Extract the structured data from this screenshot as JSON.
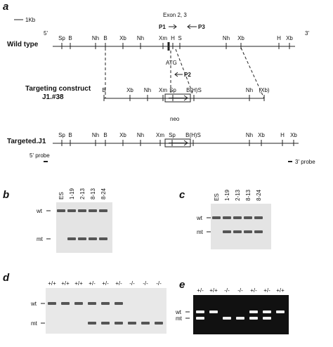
{
  "panels": {
    "a": {
      "label": "a",
      "scale": "1Kb",
      "exon": "Exon 2, 3",
      "p1": "P1",
      "p3": "P3",
      "p2": "P2",
      "atg": "ATG",
      "five": "5'",
      "three": "3'",
      "neo": "neo",
      "probe5": "5' probe",
      "probe3": "3' probe",
      "maps": [
        {
          "label": "Wild type",
          "sites": [
            "Sp",
            "B",
            "Nh",
            "B",
            "Xb",
            "Nh",
            "Xm",
            "H",
            "S",
            "Nh",
            "Xb",
            "H",
            "Xb"
          ]
        },
        {
          "label": "Targeting construct",
          "sublabel": "J1.#38",
          "sites": [
            "B",
            "Xb",
            "Nh",
            "Xm",
            "Sp",
            "B(H)S",
            "Nh",
            "(Xb)"
          ]
        },
        {
          "label": "Targeted.J1",
          "sites": [
            "Sp",
            "B",
            "Nh",
            "B",
            "Xb",
            "Nh",
            "Xm",
            "Sp",
            "B(H)S",
            "Nh",
            "Xb",
            "H",
            "Xb"
          ]
        }
      ]
    },
    "b": {
      "label": "b",
      "lanes": [
        "ES",
        "1-19",
        "2-13",
        "8-13",
        "8-24"
      ],
      "rows": [
        "wt",
        "mt"
      ]
    },
    "c": {
      "label": "c",
      "lanes": [
        "ES",
        "1-19",
        "2-13",
        "8-13",
        "8-24"
      ],
      "rows": [
        "wt",
        "mt"
      ]
    },
    "d": {
      "label": "d",
      "lanes": [
        "+/+",
        "+/+",
        "+/+",
        "+/-",
        "+/-",
        "+/-",
        "-/-",
        "-/-",
        "-/-"
      ],
      "rows": [
        "wt",
        "mt"
      ]
    },
    "e": {
      "label": "e",
      "lanes": [
        "+/-",
        "+/+",
        "-/-",
        "-/-",
        "+/-",
        "+/-",
        "+/+"
      ],
      "rows": [
        "wt",
        "mt"
      ]
    }
  }
}
